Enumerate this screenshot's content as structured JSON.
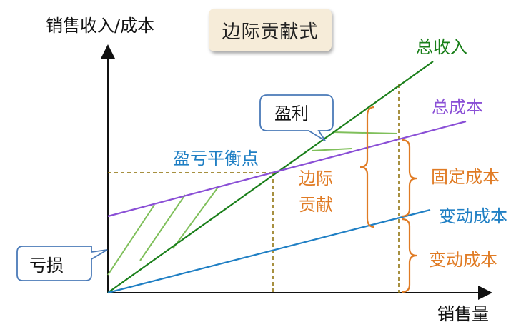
{
  "diagram": {
    "title": "边际贡献式",
    "axes": {
      "y_label": "销售收入/成本",
      "x_label": "销售量"
    },
    "lines": {
      "total_revenue": {
        "label": "总收入",
        "color": "#1a7f1a"
      },
      "total_cost": {
        "label": "总成本",
        "color": "#8a4fd6"
      },
      "variable_cost": {
        "label": "变动成本",
        "color": "#1f7fc4"
      }
    },
    "annotations": {
      "breakeven": "盈亏平衡点",
      "profit": "盈利",
      "loss": "亏损",
      "contribution_margin": "边际贡献",
      "fixed_cost": "固定成本",
      "variable_cost_brace": "变动成本"
    },
    "colors": {
      "axis": "#111111",
      "annotation_orange": "#e07b24",
      "callout_border": "#4a7ab8",
      "dashed": "#8a6b00",
      "hatch": "#7fbf5a"
    }
  }
}
